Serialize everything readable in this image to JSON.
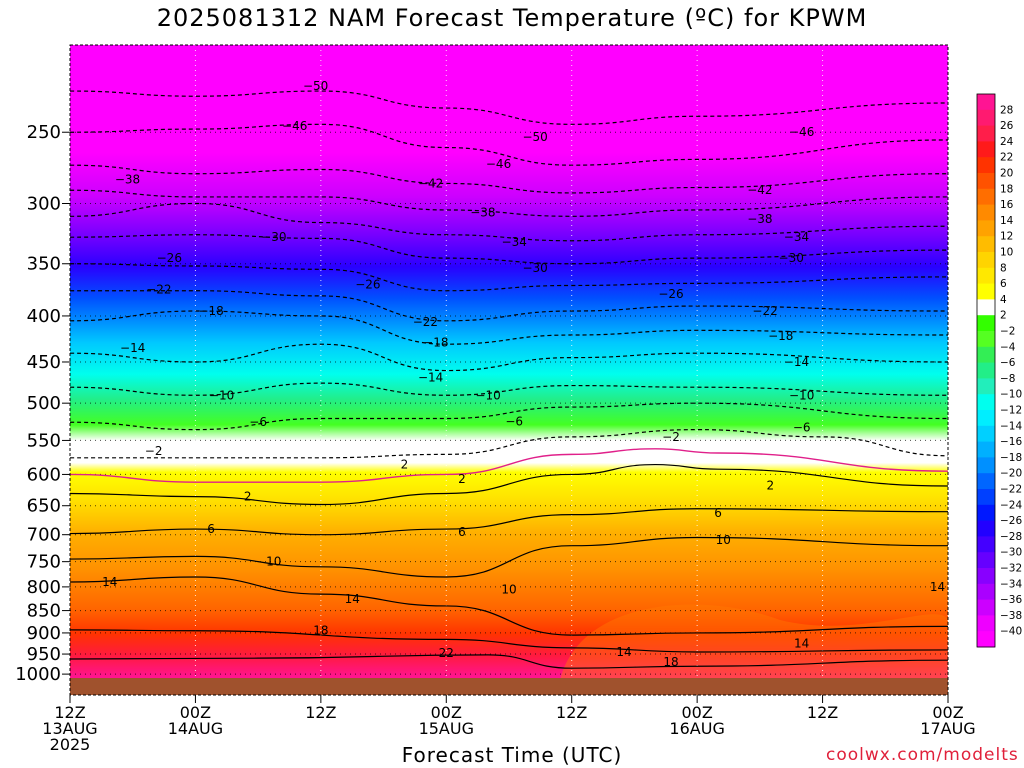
{
  "chart_data": {
    "type": "heatmap",
    "title": "2025081312 NAM Forecast Temperature (ºC) for KPWM",
    "xlabel": "Forecast Time (UTC)",
    "ylabel": "",
    "credit": "coolwx.com/modelts",
    "x_ticks": [
      {
        "hours": 0,
        "line1": "12Z",
        "line2": "13AUG",
        "line3": "2025"
      },
      {
        "hours": 12,
        "line1": "00Z",
        "line2": "14AUG",
        "line3": ""
      },
      {
        "hours": 24,
        "line1": "12Z",
        "line2": "",
        "line3": ""
      },
      {
        "hours": 36,
        "line1": "00Z",
        "line2": "15AUG",
        "line3": ""
      },
      {
        "hours": 48,
        "line1": "12Z",
        "line2": "",
        "line3": ""
      },
      {
        "hours": 60,
        "line1": "00Z",
        "line2": "16AUG",
        "line3": ""
      },
      {
        "hours": 72,
        "line1": "12Z",
        "line2": "",
        "line3": ""
      },
      {
        "hours": 84,
        "line1": "00Z",
        "line2": "17AUG",
        "line3": ""
      }
    ],
    "xlim": [
      0,
      84
    ],
    "y_ticks": [
      250,
      300,
      350,
      400,
      450,
      500,
      550,
      600,
      650,
      700,
      750,
      800,
      850,
      900,
      950,
      1000
    ],
    "ylim": [
      1010,
      200
    ],
    "y_scale": "log-pressure",
    "colorbar": {
      "levels": [
        28,
        26,
        24,
        22,
        20,
        18,
        16,
        14,
        12,
        10,
        8,
        6,
        4,
        2,
        -2,
        -4,
        -6,
        -8,
        -10,
        -12,
        -14,
        -16,
        -18,
        -20,
        -22,
        -24,
        -26,
        -28,
        -30,
        -32,
        -34,
        -36,
        -38,
        -40
      ],
      "colors": [
        "#ff1493",
        "#ff1a70",
        "#ff1e4a",
        "#ff1a1a",
        "#ff3300",
        "#ff5200",
        "#ff6e00",
        "#ff8a00",
        "#ffa200",
        "#ffbc00",
        "#ffd400",
        "#ffe800",
        "#ffff00",
        "#ffffff",
        "#33ff00",
        "#55ff22",
        "#33ee55",
        "#22ee88",
        "#22eebb",
        "#00ffee",
        "#00eeff",
        "#00d0ff",
        "#00b0ff",
        "#0090ff",
        "#0066ff",
        "#0040ff",
        "#0018ff",
        "#2200ff",
        "#4400ff",
        "#6600ff",
        "#8800ff",
        "#aa00ff",
        "#cc00ff",
        "#ee00ff",
        "#ff00ff"
      ]
    },
    "isotherms": [
      {
        "value": 22,
        "points": [
          [
            0,
            962
          ],
          [
            18,
            960
          ],
          [
            40,
            952
          ],
          [
            48,
            985
          ],
          [
            60,
            980
          ],
          [
            84,
            965
          ]
        ]
      },
      {
        "value": 18,
        "points": [
          [
            0,
            893
          ],
          [
            12,
            895
          ],
          [
            36,
            915
          ],
          [
            48,
            935
          ],
          [
            60,
            945
          ],
          [
            84,
            940
          ]
        ]
      },
      {
        "value": 14,
        "points": [
          [
            0,
            790
          ],
          [
            12,
            780
          ],
          [
            24,
            815
          ],
          [
            36,
            840
          ],
          [
            48,
            905
          ],
          [
            60,
            900
          ],
          [
            84,
            885
          ]
        ]
      },
      {
        "value": 10,
        "points": [
          [
            0,
            745
          ],
          [
            12,
            740
          ],
          [
            24,
            760
          ],
          [
            36,
            780
          ],
          [
            48,
            720
          ],
          [
            60,
            705
          ],
          [
            84,
            720
          ]
        ]
      },
      {
        "value": 6,
        "points": [
          [
            0,
            698
          ],
          [
            12,
            690
          ],
          [
            24,
            700
          ],
          [
            36,
            690
          ],
          [
            48,
            665
          ],
          [
            60,
            655
          ],
          [
            84,
            660
          ]
        ]
      },
      {
        "value": 2,
        "points": [
          [
            0,
            630
          ],
          [
            12,
            635
          ],
          [
            24,
            648
          ],
          [
            36,
            630
          ],
          [
            48,
            600
          ],
          [
            56,
            585
          ],
          [
            62,
            592
          ],
          [
            84,
            618
          ]
        ]
      },
      {
        "value": -2,
        "points": [
          [
            0,
            575
          ],
          [
            12,
            575
          ],
          [
            24,
            575
          ],
          [
            36,
            570
          ],
          [
            48,
            545
          ],
          [
            60,
            535
          ],
          [
            72,
            545
          ],
          [
            84,
            572
          ]
        ]
      },
      {
        "value": -6,
        "points": [
          [
            0,
            525
          ],
          [
            12,
            535
          ],
          [
            24,
            520
          ],
          [
            36,
            520
          ],
          [
            48,
            505
          ],
          [
            60,
            500
          ],
          [
            84,
            520
          ]
        ]
      },
      {
        "value": -10,
        "points": [
          [
            0,
            480
          ],
          [
            12,
            490
          ],
          [
            24,
            475
          ],
          [
            36,
            490
          ],
          [
            48,
            478
          ],
          [
            60,
            480
          ],
          [
            84,
            490
          ]
        ]
      },
      {
        "value": -14,
        "points": [
          [
            0,
            440
          ],
          [
            12,
            450
          ],
          [
            24,
            430
          ],
          [
            36,
            460
          ],
          [
            48,
            445
          ],
          [
            60,
            440
          ],
          [
            84,
            450
          ]
        ]
      },
      {
        "value": -18,
        "points": [
          [
            0,
            405
          ],
          [
            12,
            395
          ],
          [
            24,
            400
          ],
          [
            36,
            430
          ],
          [
            48,
            420
          ],
          [
            60,
            415
          ],
          [
            84,
            420
          ]
        ]
      },
      {
        "value": -22,
        "points": [
          [
            0,
            375
          ],
          [
            12,
            375
          ],
          [
            24,
            380
          ],
          [
            36,
            405
          ],
          [
            48,
            395
          ],
          [
            60,
            390
          ],
          [
            84,
            395
          ]
        ]
      },
      {
        "value": -26,
        "points": [
          [
            0,
            350
          ],
          [
            12,
            352
          ],
          [
            24,
            355
          ],
          [
            36,
            375
          ],
          [
            48,
            370
          ],
          [
            60,
            368
          ],
          [
            84,
            362
          ]
        ]
      },
      {
        "value": -30,
        "points": [
          [
            0,
            327
          ],
          [
            12,
            325
          ],
          [
            24,
            328
          ],
          [
            36,
            345
          ],
          [
            48,
            350
          ],
          [
            60,
            345
          ],
          [
            84,
            338
          ]
        ]
      },
      {
        "value": -34,
        "points": [
          [
            0,
            310
          ],
          [
            12,
            300
          ],
          [
            24,
            315
          ],
          [
            36,
            325
          ],
          [
            48,
            330
          ],
          [
            60,
            325
          ],
          [
            84,
            318
          ]
        ]
      },
      {
        "value": -38,
        "points": [
          [
            0,
            290
          ],
          [
            12,
            295
          ],
          [
            24,
            295
          ],
          [
            36,
            305
          ],
          [
            48,
            310
          ],
          [
            60,
            305
          ],
          [
            84,
            295
          ]
        ]
      },
      {
        "value": -42,
        "points": [
          [
            0,
            272
          ],
          [
            12,
            278
          ],
          [
            24,
            275
          ],
          [
            36,
            285
          ],
          [
            48,
            292
          ],
          [
            60,
            288
          ],
          [
            84,
            278
          ]
        ]
      },
      {
        "value": -46,
        "points": [
          [
            0,
            250
          ],
          [
            12,
            248
          ],
          [
            24,
            245
          ],
          [
            36,
            260
          ],
          [
            48,
            272
          ],
          [
            60,
            268
          ],
          [
            84,
            255
          ]
        ]
      },
      {
        "value": -50,
        "points": [
          [
            0,
            225
          ],
          [
            12,
            228
          ],
          [
            24,
            225
          ],
          [
            36,
            235
          ],
          [
            48,
            245
          ],
          [
            60,
            240
          ],
          [
            84,
            232
          ]
        ]
      }
    ],
    "contour_labels": [
      {
        "text": "−50",
        "hours": 23.5,
        "p": 222
      },
      {
        "text": "−46",
        "hours": 21.5,
        "p": 246
      },
      {
        "text": "−50",
        "hours": 44.5,
        "p": 253
      },
      {
        "text": "−46",
        "hours": 41.0,
        "p": 271
      },
      {
        "text": "−46",
        "hours": 70.0,
        "p": 250
      },
      {
        "text": "−38",
        "hours": 5.5,
        "p": 282
      },
      {
        "text": "−42",
        "hours": 34.5,
        "p": 285
      },
      {
        "text": "−42",
        "hours": 66.0,
        "p": 290
      },
      {
        "text": "−38",
        "hours": 39.5,
        "p": 307
      },
      {
        "text": "−38",
        "hours": 66.0,
        "p": 312
      },
      {
        "text": "−30",
        "hours": 19.5,
        "p": 327
      },
      {
        "text": "−34",
        "hours": 42.5,
        "p": 331
      },
      {
        "text": "−34",
        "hours": 69.5,
        "p": 327
      },
      {
        "text": "−30",
        "hours": 44.5,
        "p": 354
      },
      {
        "text": "−30",
        "hours": 69.0,
        "p": 345
      },
      {
        "text": "−26",
        "hours": 9.5,
        "p": 345
      },
      {
        "text": "−26",
        "hours": 28.5,
        "p": 369
      },
      {
        "text": "−26",
        "hours": 57.5,
        "p": 378
      },
      {
        "text": "−22",
        "hours": 8.5,
        "p": 374
      },
      {
        "text": "−22",
        "hours": 34.0,
        "p": 406
      },
      {
        "text": "−22",
        "hours": 66.5,
        "p": 395
      },
      {
        "text": "−18",
        "hours": 13.5,
        "p": 395
      },
      {
        "text": "−18",
        "hours": 35.0,
        "p": 428
      },
      {
        "text": "−18",
        "hours": 68.0,
        "p": 421
      },
      {
        "text": "−14",
        "hours": 6.0,
        "p": 434
      },
      {
        "text": "−14",
        "hours": 34.5,
        "p": 468
      },
      {
        "text": "−14",
        "hours": 69.5,
        "p": 450
      },
      {
        "text": "−10",
        "hours": 14.5,
        "p": 490
      },
      {
        "text": "−10",
        "hours": 40.0,
        "p": 490
      },
      {
        "text": "−10",
        "hours": 70.0,
        "p": 490
      },
      {
        "text": "−6",
        "hours": 18.0,
        "p": 525
      },
      {
        "text": "−6",
        "hours": 42.5,
        "p": 524
      },
      {
        "text": "−6",
        "hours": 70.0,
        "p": 532
      },
      {
        "text": "−2",
        "hours": 8.0,
        "p": 565
      },
      {
        "text": "−2",
        "hours": 57.5,
        "p": 545
      },
      {
        "text": "2",
        "hours": 32.0,
        "p": 585
      },
      {
        "text": "2",
        "hours": 37.5,
        "p": 607
      },
      {
        "text": "2",
        "hours": 17.0,
        "p": 635
      },
      {
        "text": "2",
        "hours": 67.0,
        "p": 617
      },
      {
        "text": "6",
        "hours": 13.5,
        "p": 690
      },
      {
        "text": "6",
        "hours": 37.5,
        "p": 695
      },
      {
        "text": "6",
        "hours": 62.0,
        "p": 662
      },
      {
        "text": "10",
        "hours": 19.5,
        "p": 750
      },
      {
        "text": "10",
        "hours": 42.0,
        "p": 805
      },
      {
        "text": "10",
        "hours": 62.5,
        "p": 710
      },
      {
        "text": "14",
        "hours": 3.8,
        "p": 790
      },
      {
        "text": "14",
        "hours": 27.0,
        "p": 825
      },
      {
        "text": "14",
        "hours": 53.0,
        "p": 945
      },
      {
        "text": "14",
        "hours": 70.0,
        "p": 925
      },
      {
        "text": "14",
        "hours": 83.0,
        "p": 800
      },
      {
        "text": "18",
        "hours": 24.0,
        "p": 895
      },
      {
        "text": "18",
        "hours": 57.5,
        "p": 970
      },
      {
        "text": "22",
        "hours": 36.0,
        "p": 948
      }
    ]
  }
}
